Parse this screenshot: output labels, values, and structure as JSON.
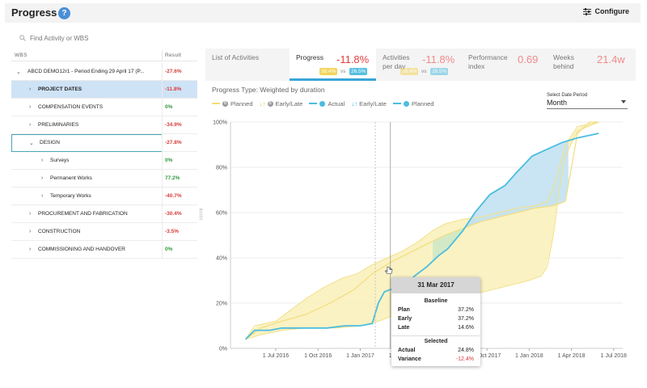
{
  "header": {
    "title": "Progress",
    "help_icon": "?",
    "configure_label": "Configure"
  },
  "search": {
    "placeholder": "Find Activity or WBS"
  },
  "tree": {
    "col_wbs": "WBS",
    "col_result": "Result",
    "rows": [
      {
        "label": "ABCD DEMO12r1 - Period Ending 29 April 17 (P...",
        "result": "-27.6%",
        "sign": "neg",
        "level": 0,
        "expanded": true,
        "selected": false
      },
      {
        "label": "PROJECT DATES",
        "result": "-11.8%",
        "sign": "neg",
        "level": 1,
        "expanded": false,
        "selected": true
      },
      {
        "label": "COMPENSATION EVENTS",
        "result": "0%",
        "sign": "pos",
        "level": 1,
        "expanded": false,
        "selected": false
      },
      {
        "label": "PRELIMINARIES",
        "result": "-34.9%",
        "sign": "neg",
        "level": 1,
        "expanded": false,
        "selected": false
      },
      {
        "label": "DESIGN",
        "result": "-27.8%",
        "sign": "neg",
        "level": 1,
        "expanded": true,
        "selected": false,
        "outlined": true
      },
      {
        "label": "Surveys",
        "result": "0%",
        "sign": "pos",
        "level": 2,
        "expanded": false,
        "selected": false
      },
      {
        "label": "Permanent Works",
        "result": "77.2%",
        "sign": "pos",
        "level": 2,
        "expanded": false,
        "selected": false
      },
      {
        "label": "Temporary Works",
        "result": "-40.7%",
        "sign": "neg",
        "level": 2,
        "expanded": false,
        "selected": false
      },
      {
        "label": "PROCUREMENT AND FABRICATION",
        "result": "-30.4%",
        "sign": "neg",
        "level": 1,
        "expanded": false,
        "selected": false
      },
      {
        "label": "CONSTRUCTION",
        "result": "-3.5%",
        "sign": "neg",
        "level": 1,
        "expanded": false,
        "selected": false
      },
      {
        "label": "COMMISSIONING AND HANDOVER",
        "result": "0%",
        "sign": "pos",
        "level": 1,
        "expanded": false,
        "selected": false
      }
    ]
  },
  "tabs": {
    "list": {
      "label": "List of Activities"
    },
    "progress": {
      "label": "Progress",
      "value": "-11.8%",
      "pill_a": "38.4%",
      "vs": "vs",
      "pill_b": "26.5%"
    },
    "perday": {
      "label_1": "Activities",
      "label_2": "per day",
      "value": "-11.8%",
      "pill_a": "38.4%",
      "vs": "vs",
      "pill_b": "26.5%"
    },
    "perf": {
      "label_1": "Performance",
      "label_2": "index",
      "value": "0.69"
    },
    "weeks": {
      "label_1": "Weeks",
      "label_2": "behind",
      "value": "21.4w"
    }
  },
  "progress_type": "Progress Type: Weighted by duration",
  "legend": {
    "baseline_planned": "Planned",
    "baseline_early_late": "Early/Late",
    "actual": "Actual",
    "early_late": "Early/Late",
    "planned": "Planned",
    "baseline_marker": "B"
  },
  "period_select": {
    "label": "Select Date Period",
    "value": "Month"
  },
  "colors": {
    "actual": "#4bbde0",
    "baseline": "#f2dd7e",
    "baseline_fill": "#f8eeb0",
    "green_fill": "#cde8c8",
    "blue_fill": "#c4e3f1"
  },
  "chart_data": {
    "type": "area",
    "y_ticks": [
      "0%",
      "20%",
      "40%",
      "60%",
      "80%",
      "100%"
    ],
    "x_ticks": [
      "1 Jul 2016",
      "1 Oct 2016",
      "1 Jan 2017",
      "1 Apr 2017",
      "1 Jul 2017",
      "1 Oct 2017",
      "1 Jan 2018",
      "1 Apr 2018",
      "1 Jul 2018"
    ],
    "x_tick_pos": [
      0.1,
      0.24,
      0.38,
      0.52,
      0.66,
      0.8,
      0.94,
      1.08,
      1.22
    ],
    "ylim": [
      0,
      100
    ],
    "actual": {
      "name": "Actual",
      "points": [
        [
          0.0,
          4
        ],
        [
          0.03,
          8
        ],
        [
          0.08,
          8
        ],
        [
          0.12,
          9
        ],
        [
          0.2,
          9
        ],
        [
          0.27,
          9
        ],
        [
          0.33,
          10
        ],
        [
          0.38,
          10
        ],
        [
          0.42,
          11
        ],
        [
          0.44,
          20
        ],
        [
          0.46,
          25
        ],
        [
          0.48,
          26
        ],
        [
          0.51,
          27
        ],
        [
          0.53,
          28
        ],
        [
          0.56,
          32
        ],
        [
          0.6,
          36
        ],
        [
          0.64,
          41
        ],
        [
          0.67,
          44
        ],
        [
          0.72,
          52
        ],
        [
          0.76,
          60
        ],
        [
          0.81,
          68
        ],
        [
          0.86,
          72
        ],
        [
          0.9,
          78
        ],
        [
          0.95,
          85
        ],
        [
          1.0,
          88
        ],
        [
          1.05,
          91
        ],
        [
          1.1,
          93
        ],
        [
          1.17,
          95
        ]
      ]
    },
    "planned": {
      "name": "Planned",
      "points": [
        [
          0.0,
          4
        ],
        [
          0.05,
          9
        ],
        [
          0.12,
          12
        ],
        [
          0.2,
          15
        ],
        [
          0.28,
          20
        ],
        [
          0.36,
          26
        ],
        [
          0.42,
          33
        ],
        [
          0.48,
          38
        ],
        [
          0.54,
          42
        ],
        [
          0.6,
          46
        ],
        [
          0.66,
          50
        ],
        [
          0.72,
          53
        ],
        [
          0.78,
          56
        ],
        [
          0.84,
          58
        ],
        [
          0.9,
          60
        ],
        [
          0.96,
          62
        ],
        [
          1.02,
          63
        ],
        [
          1.06,
          65
        ],
        [
          1.08,
          80
        ],
        [
          1.1,
          95
        ],
        [
          1.14,
          100
        ],
        [
          1.17,
          100
        ]
      ]
    },
    "baseline_early": {
      "name": "Early",
      "points": [
        [
          0.0,
          4
        ],
        [
          0.03,
          10
        ],
        [
          0.1,
          12
        ],
        [
          0.14,
          16
        ],
        [
          0.2,
          22
        ],
        [
          0.26,
          27
        ],
        [
          0.32,
          31
        ],
        [
          0.37,
          33
        ],
        [
          0.42,
          37
        ],
        [
          0.47,
          40
        ],
        [
          0.52,
          43
        ],
        [
          0.57,
          47
        ],
        [
          0.62,
          52
        ],
        [
          0.66,
          55
        ],
        [
          0.72,
          57
        ],
        [
          0.78,
          58
        ],
        [
          0.84,
          60
        ],
        [
          0.9,
          62
        ],
        [
          0.96,
          63
        ],
        [
          1.0,
          65
        ],
        [
          1.03,
          75
        ],
        [
          1.06,
          90
        ],
        [
          1.1,
          98
        ],
        [
          1.17,
          100
        ]
      ]
    },
    "baseline_late": {
      "name": "Late",
      "points": [
        [
          0.0,
          4
        ],
        [
          0.05,
          6
        ],
        [
          0.12,
          8
        ],
        [
          0.2,
          9
        ],
        [
          0.3,
          9
        ],
        [
          0.38,
          10
        ],
        [
          0.44,
          12
        ],
        [
          0.48,
          14
        ],
        [
          0.52,
          16
        ],
        [
          0.58,
          18
        ],
        [
          0.64,
          20
        ],
        [
          0.7,
          22
        ],
        [
          0.76,
          24
        ],
        [
          0.82,
          26
        ],
        [
          0.88,
          28
        ],
        [
          0.94,
          30
        ],
        [
          0.98,
          32
        ],
        [
          1.0,
          36
        ],
        [
          1.02,
          50
        ],
        [
          1.04,
          70
        ],
        [
          1.06,
          85
        ],
        [
          1.1,
          96
        ],
        [
          1.17,
          100
        ]
      ]
    }
  },
  "tooltip": {
    "date": "31 Mar 2017",
    "baseline_title": "Baseline",
    "plan_label": "Plan",
    "plan_value": "37.2%",
    "early_label": "Early",
    "early_value": "37.2%",
    "late_label": "Late",
    "late_value": "14.6%",
    "selected_title": "Selected",
    "actual_label": "Actual",
    "actual_value": "24.8%",
    "variance_label": "Variance",
    "variance_value": "-12.4%"
  }
}
